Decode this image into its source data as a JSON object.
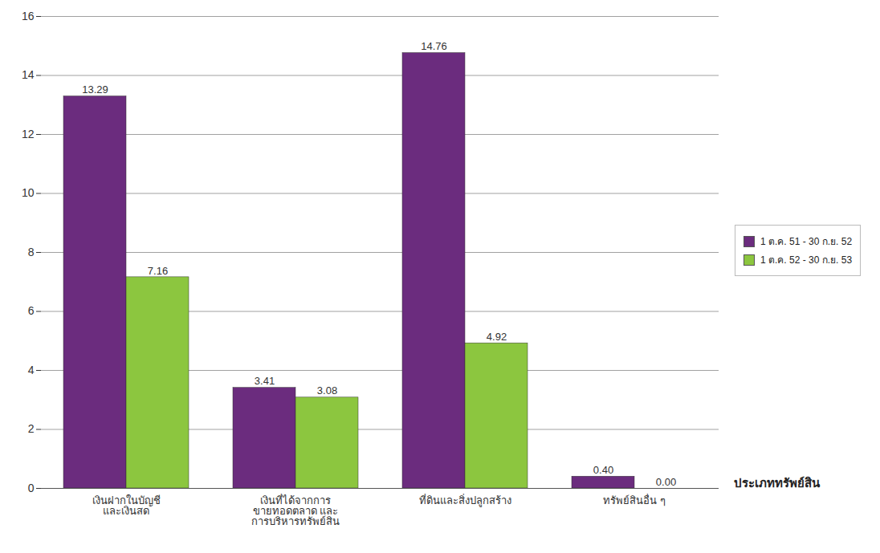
{
  "chart_data": {
    "type": "bar",
    "x_label": "ประเภททรัพย์สิน",
    "categories": [
      "เงินฝากในบัญชี และเงินสด",
      "เงินที่ได้จากการ ขายทอดตลาด และ การบริหารทรัพย์สิน",
      "ที่ดินและสิ่งปลูกสร้าง",
      "ทรัพย์สินอื่น ๆ"
    ],
    "series": [
      {
        "name": "1 ต.ค. 51 - 30 ก.ย. 52",
        "color": "#6b2c7e",
        "values": [
          13.29,
          3.41,
          14.76,
          0.4
        ],
        "value_labels": [
          "13.29",
          "3.41",
          "14.76",
          "0.40"
        ]
      },
      {
        "name": "1 ต.ค. 52 - 30 ก.ย. 53",
        "color": "#8cc63f",
        "values": [
          7.16,
          3.08,
          4.92,
          0.0
        ],
        "value_labels": [
          "7.16",
          "3.08",
          "4.92",
          "0.00"
        ]
      }
    ],
    "ylim": [
      0,
      16
    ],
    "yticks": [
      0,
      2,
      4,
      6,
      8,
      10,
      12,
      14,
      16
    ],
    "grid": true,
    "data_labels": true,
    "legend": "right"
  }
}
